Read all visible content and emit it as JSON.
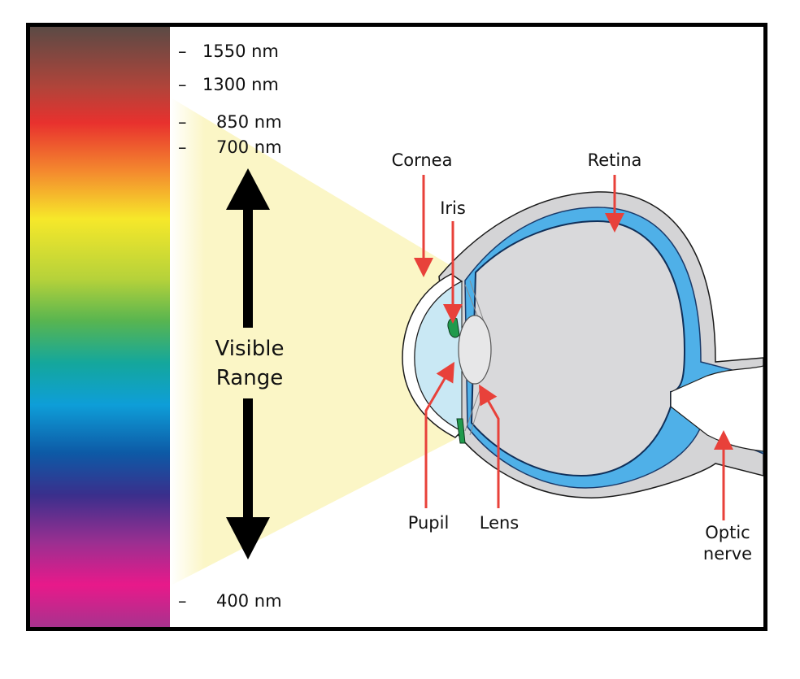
{
  "wavelength_labels": {
    "w1550": "1550 nm",
    "w1300": "1300 nm",
    "w850": "850 nm",
    "w700": "700 nm",
    "w400": "400 nm"
  },
  "tick_mark": "–",
  "visible_range": {
    "line1": "Visible",
    "line2": "Range"
  },
  "parts": {
    "cornea": "Cornea",
    "iris": "Iris",
    "retina": "Retina",
    "pupil": "Pupil",
    "lens": "Lens",
    "optic_line1": "Optic",
    "optic_line2": "nerve"
  },
  "colors": {
    "pointer": "#e8413a",
    "retina_blue": "#4fb0e8",
    "sclera_gray": "#d4d4d6",
    "vitreous_gray": "#d9d9db",
    "aqueous": "#c9e8f4",
    "iris_green": "#1f9a4c",
    "light_cone": "#fbf6c6"
  }
}
